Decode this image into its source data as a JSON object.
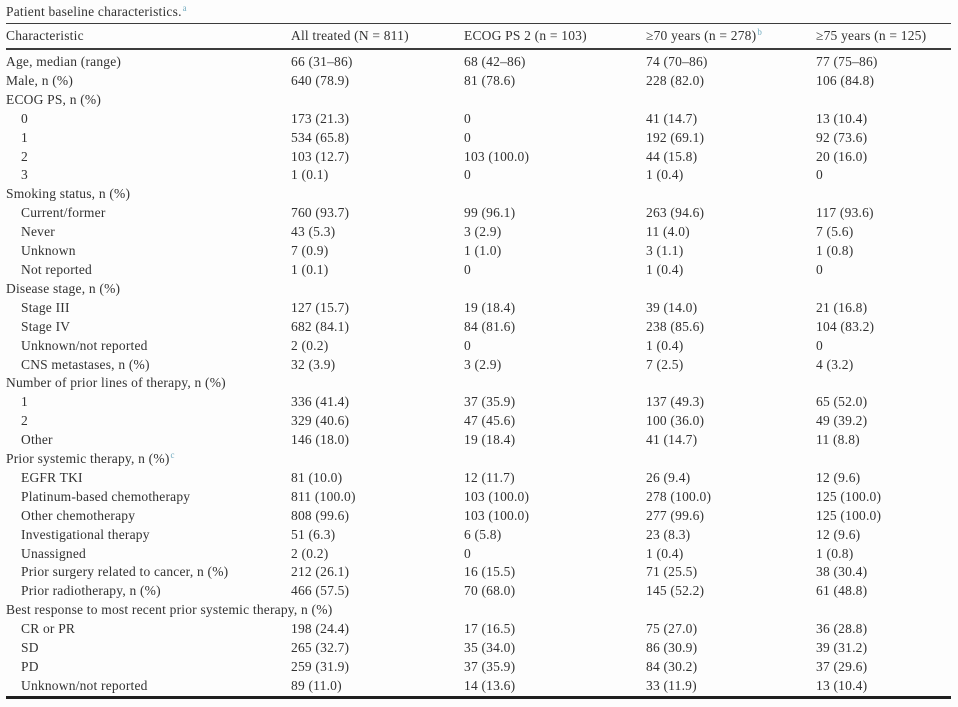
{
  "title": {
    "text": "Patient baseline characteristics.",
    "superscript": "a"
  },
  "table": {
    "columns": [
      "Characteristic",
      "All treated (N = 811)",
      "ECOG PS 2 (n = 103)",
      "≥70 years (n = 278)",
      "≥75 years (n = 125)"
    ],
    "column_superscripts": [
      "",
      "",
      "",
      "b",
      ""
    ],
    "rows": [
      {
        "label": "Age, median (range)",
        "indent": 0,
        "values": [
          "66 (31–86)",
          "68 (42–86)",
          "74 (70–86)",
          "77 (75–86)"
        ]
      },
      {
        "label": "Male, n (%)",
        "indent": 0,
        "values": [
          "640 (78.9)",
          "81 (78.6)",
          "228 (82.0)",
          "106 (84.8)"
        ]
      },
      {
        "label": "ECOG PS, n (%)",
        "indent": 0,
        "values": null
      },
      {
        "label": "0",
        "indent": 1,
        "values": [
          "173 (21.3)",
          "0",
          "41 (14.7)",
          "13 (10.4)"
        ]
      },
      {
        "label": "1",
        "indent": 1,
        "values": [
          "534 (65.8)",
          "0",
          "192 (69.1)",
          "92 (73.6)"
        ]
      },
      {
        "label": "2",
        "indent": 1,
        "values": [
          "103 (12.7)",
          "103 (100.0)",
          "44 (15.8)",
          "20 (16.0)"
        ]
      },
      {
        "label": "3",
        "indent": 1,
        "values": [
          "1 (0.1)",
          "0",
          "1 (0.4)",
          "0"
        ]
      },
      {
        "label": "Smoking status, n (%)",
        "indent": 0,
        "values": null
      },
      {
        "label": "Current/former",
        "indent": 1,
        "values": [
          "760 (93.7)",
          "99 (96.1)",
          "263 (94.6)",
          "117 (93.6)"
        ]
      },
      {
        "label": "Never",
        "indent": 1,
        "values": [
          "43 (5.3)",
          "3 (2.9)",
          "11 (4.0)",
          "7 (5.6)"
        ]
      },
      {
        "label": "Unknown",
        "indent": 1,
        "values": [
          "7 (0.9)",
          "1 (1.0)",
          "3 (1.1)",
          "1 (0.8)"
        ]
      },
      {
        "label": "Not reported",
        "indent": 1,
        "values": [
          "1 (0.1)",
          "0",
          "1 (0.4)",
          "0"
        ]
      },
      {
        "label": "Disease stage, n (%)",
        "indent": 0,
        "values": null
      },
      {
        "label": "Stage III",
        "indent": 1,
        "values": [
          "127 (15.7)",
          "19 (18.4)",
          "39 (14.0)",
          "21 (16.8)"
        ]
      },
      {
        "label": "Stage IV",
        "indent": 1,
        "values": [
          "682 (84.1)",
          "84 (81.6)",
          "238 (85.6)",
          "104 (83.2)"
        ]
      },
      {
        "label": "Unknown/not reported",
        "indent": 1,
        "values": [
          "2 (0.2)",
          "0",
          "1 (0.4)",
          "0"
        ]
      },
      {
        "label": "CNS metastases, n (%)",
        "indent": 1,
        "values": [
          "32 (3.9)",
          "3 (2.9)",
          "7 (2.5)",
          "4 (3.2)"
        ]
      },
      {
        "label": "Number of prior lines of therapy, n (%)",
        "indent": 0,
        "values": null
      },
      {
        "label": "1",
        "indent": 1,
        "values": [
          "336 (41.4)",
          "37 (35.9)",
          "137 (49.3)",
          "65 (52.0)"
        ]
      },
      {
        "label": "2",
        "indent": 1,
        "values": [
          "329 (40.6)",
          "47 (45.6)",
          "100 (36.0)",
          "49 (39.2)"
        ]
      },
      {
        "label": "Other",
        "indent": 1,
        "values": [
          "146 (18.0)",
          "19 (18.4)",
          "41 (14.7)",
          "11 (8.8)"
        ]
      },
      {
        "label": "Prior systemic therapy, n (%)",
        "sup": "c",
        "indent": 0,
        "values": null
      },
      {
        "label": "EGFR TKI",
        "indent": 1,
        "values": [
          "81 (10.0)",
          "12 (11.7)",
          "26 (9.4)",
          "12 (9.6)"
        ]
      },
      {
        "label": "Platinum-based chemotherapy",
        "indent": 1,
        "values": [
          "811 (100.0)",
          "103 (100.0)",
          "278 (100.0)",
          "125 (100.0)"
        ]
      },
      {
        "label": "Other chemotherapy",
        "indent": 1,
        "values": [
          "808 (99.6)",
          "103 (100.0)",
          "277 (99.6)",
          "125 (100.0)"
        ]
      },
      {
        "label": "Investigational therapy",
        "indent": 1,
        "values": [
          "51 (6.3)",
          "6 (5.8)",
          "23 (8.3)",
          "12 (9.6)"
        ]
      },
      {
        "label": "Unassigned",
        "indent": 1,
        "values": [
          "2 (0.2)",
          "0",
          "1 (0.4)",
          "1 (0.8)"
        ]
      },
      {
        "label": "Prior surgery related to cancer, n (%)",
        "indent": 1,
        "values": [
          "212 (26.1)",
          "16 (15.5)",
          "71 (25.5)",
          "38 (30.4)"
        ]
      },
      {
        "label": "Prior radiotherapy, n (%)",
        "indent": 1,
        "values": [
          "466 (57.5)",
          "70 (68.0)",
          "145 (52.2)",
          "61 (48.8)"
        ]
      },
      {
        "label": "Best response to most recent prior systemic therapy, n (%)",
        "indent": 0,
        "values": null
      },
      {
        "label": "CR or PR",
        "indent": 1,
        "values": [
          "198 (24.4)",
          "17 (16.5)",
          "75 (27.0)",
          "36 (28.8)"
        ]
      },
      {
        "label": "SD",
        "indent": 1,
        "values": [
          "265 (32.7)",
          "35 (34.0)",
          "86 (30.9)",
          "39 (31.2)"
        ]
      },
      {
        "label": "PD",
        "indent": 1,
        "values": [
          "259 (31.9)",
          "37 (35.9)",
          "84 (30.2)",
          "37 (29.6)"
        ]
      },
      {
        "label": "Unknown/not reported",
        "indent": 1,
        "values": [
          "89 (11.0)",
          "14 (13.6)",
          "33 (11.9)",
          "13 (10.4)"
        ]
      }
    ]
  }
}
